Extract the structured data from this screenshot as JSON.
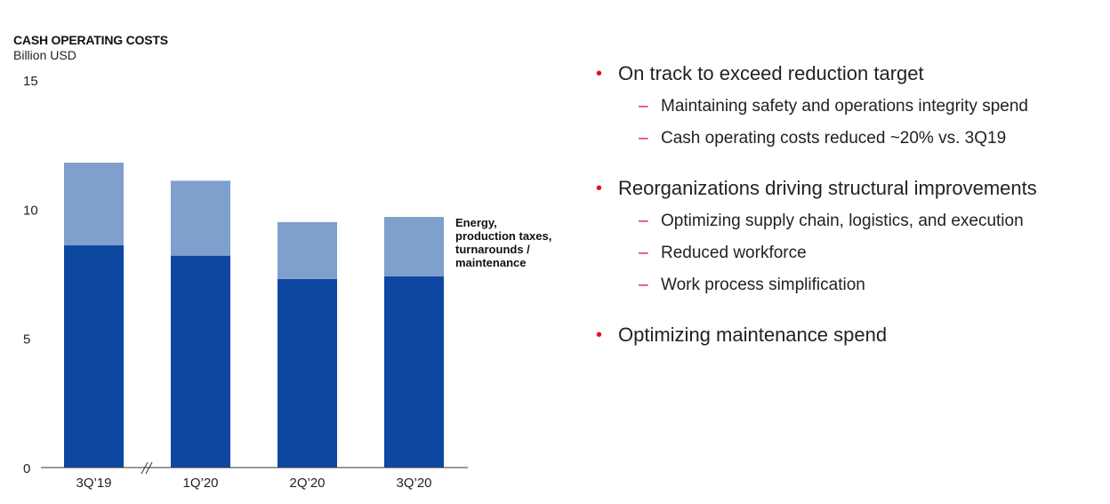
{
  "chart_data": {
    "type": "bar",
    "stacked": true,
    "title": "CASH OPERATING COSTS",
    "subtitle": "Billion USD",
    "categories": [
      "3Q’19",
      "1Q’20",
      "2Q’20",
      "3Q’20"
    ],
    "series": [
      {
        "values": [
          8.6,
          8.2,
          7.3,
          7.4
        ]
      },
      {
        "name": "Energy,\nproduction taxes,\nturnarounds /\nmaintenance",
        "values": [
          3.2,
          2.9,
          2.2,
          2.3
        ]
      }
    ],
    "ylim": [
      0,
      15
    ],
    "yticks": [
      0,
      5,
      10,
      15
    ],
    "axis_break_after": "3Q’19",
    "grid": false,
    "legend": "inline-right"
  },
  "colors": {
    "base": "#0d47a1",
    "top": "#7f9fcc",
    "bullet_marker": "#e0102b"
  },
  "bullets": [
    {
      "text": "On track to exceed reduction target",
      "subs": [
        "Maintaining safety and operations integrity spend",
        "Cash operating costs reduced ~20% vs. 3Q19"
      ]
    },
    {
      "text": "Reorganizations driving structural improvements",
      "subs": [
        "Optimizing supply chain, logistics, and execution",
        "Reduced workforce",
        "Work process simplification"
      ]
    },
    {
      "text": "Optimizing maintenance spend",
      "subs": []
    }
  ],
  "bullet_dot": "•",
  "sub_dash": "–"
}
